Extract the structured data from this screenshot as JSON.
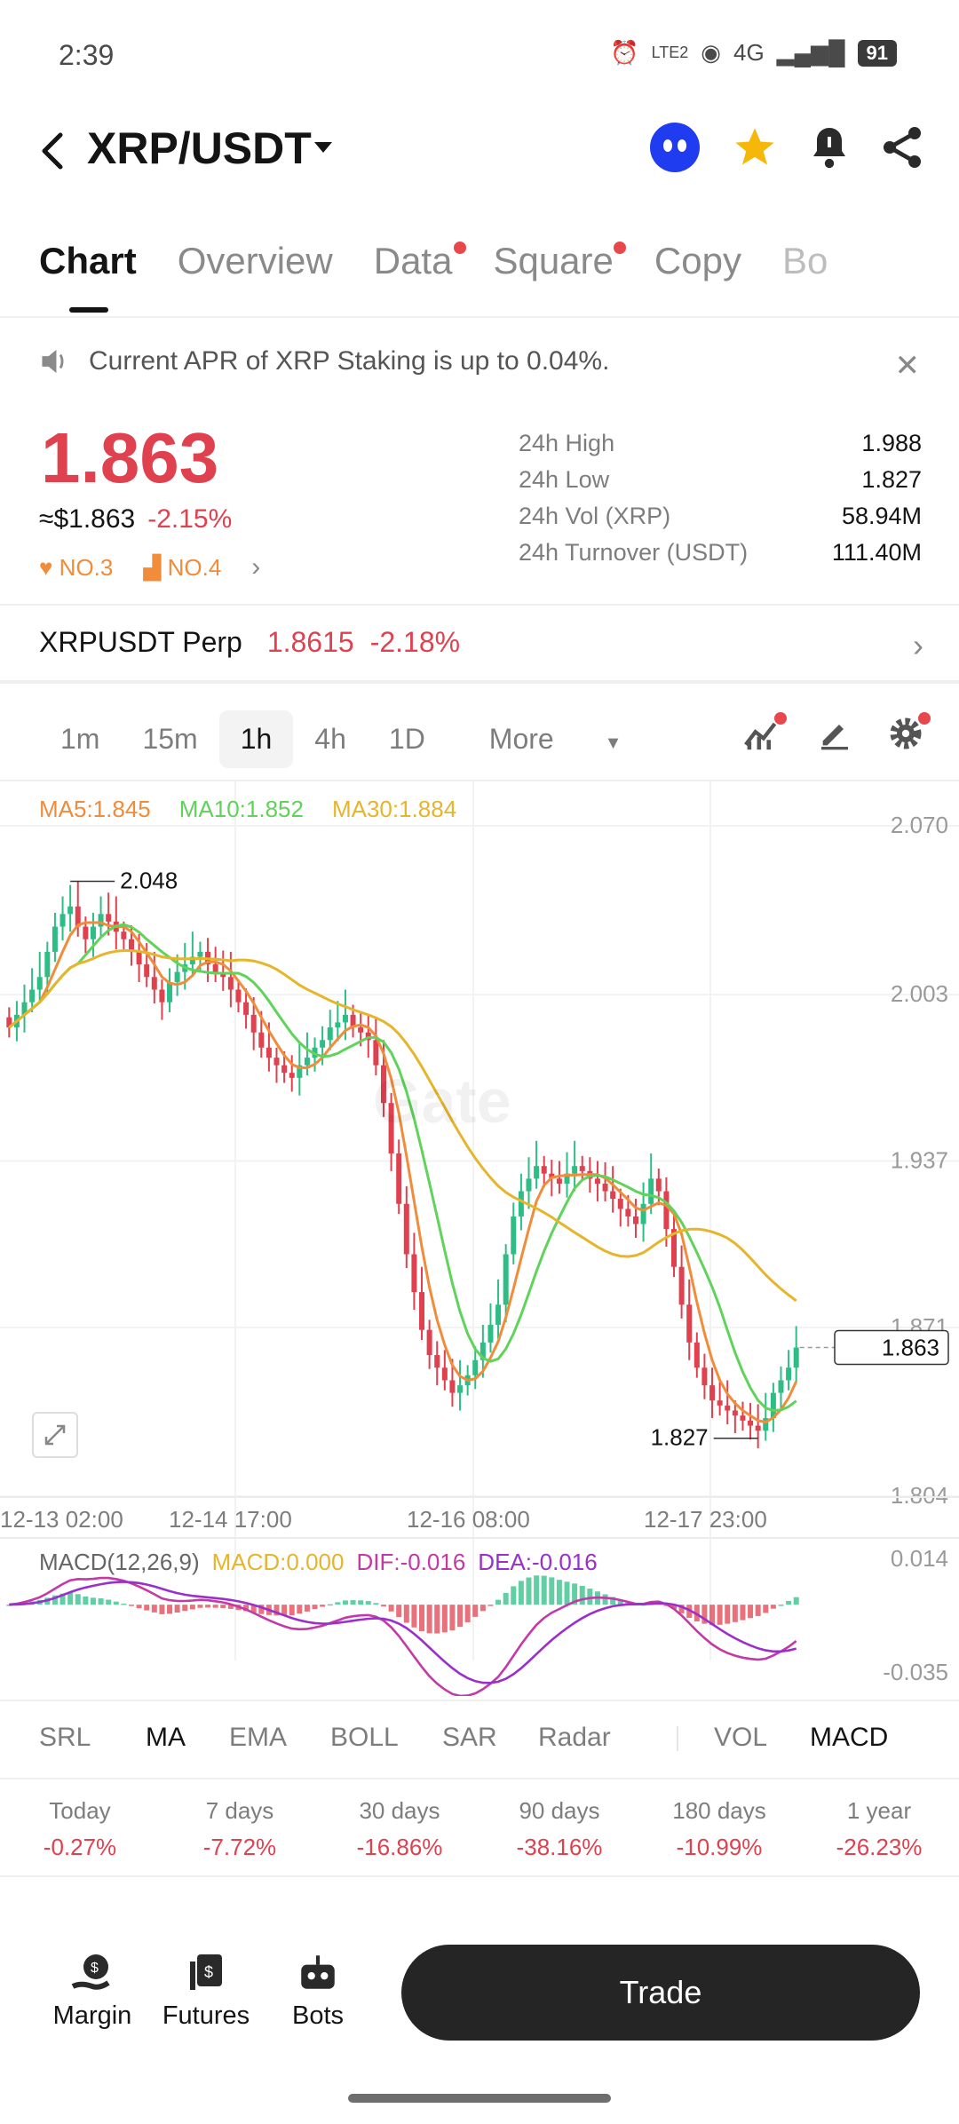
{
  "status": {
    "time": "2:39",
    "battery": "91",
    "network": "4G",
    "lte": "LTE2"
  },
  "header": {
    "pair": "XRP/USDT"
  },
  "tabs": [
    {
      "label": "Chart",
      "active": true,
      "dot": false
    },
    {
      "label": "Overview",
      "active": false,
      "dot": false
    },
    {
      "label": "Data",
      "active": false,
      "dot": true
    },
    {
      "label": "Square",
      "active": false,
      "dot": true
    },
    {
      "label": "Copy",
      "active": false,
      "dot": false
    },
    {
      "label": "Bo",
      "active": false,
      "dot": false
    }
  ],
  "notice": {
    "text": "Current APR of XRP Staking is up to 0.04%."
  },
  "price": {
    "last": "1.863",
    "usd": "≈$1.863",
    "change": "-2.15%",
    "rank1": "NO.3",
    "rank2": "NO.4"
  },
  "stats": [
    {
      "label": "24h High",
      "value": "1.988"
    },
    {
      "label": "24h Low",
      "value": "1.827"
    },
    {
      "label": "24h Vol (XRP)",
      "value": "58.94M"
    },
    {
      "label": "24h Turnover (USDT)",
      "value": "111.40M"
    }
  ],
  "perp": {
    "name": "XRPUSDT Perp",
    "price": "1.8615",
    "change": "-2.18%"
  },
  "intervals": [
    {
      "label": "1m",
      "selected": false
    },
    {
      "label": "15m",
      "selected": false
    },
    {
      "label": "1h",
      "selected": true
    },
    {
      "label": "4h",
      "selected": false
    },
    {
      "label": "1D",
      "selected": false
    }
  ],
  "more_label": "More",
  "ma": {
    "ma5": "MA5:1.845",
    "ma10": "MA10:1.852",
    "ma30": "MA30:1.884"
  },
  "colors": {
    "up": "#2ebd85",
    "down": "#e0414f",
    "ma5": "#f08c3a",
    "ma10": "#5fd35a",
    "ma30": "#e6b52b",
    "dif": "#c339a8",
    "dea": "#9b2fcb"
  },
  "chart_data": {
    "type": "candlestick",
    "y_ticks": [
      "2.070",
      "2.003",
      "1.937",
      "1.871",
      "1.804"
    ],
    "x_ticks": [
      "12-13 02:00",
      "12-14 17:00",
      "12-16 08:00",
      "12-17 23:00"
    ],
    "ylim": [
      1.804,
      2.07
    ],
    "high_label": "2.048",
    "low_label": "1.827",
    "last_price": "1.863",
    "close": [
      1.99,
      1.995,
      2.0,
      2.005,
      2.01,
      2.02,
      2.03,
      2.035,
      2.038,
      2.03,
      2.025,
      2.03,
      2.035,
      2.032,
      2.028,
      2.025,
      2.02,
      2.015,
      2.01,
      2.005,
      2.0,
      2.008,
      2.012,
      2.015,
      2.018,
      2.02,
      2.015,
      2.012,
      2.01,
      2.005,
      2.0,
      1.995,
      1.988,
      1.982,
      1.978,
      1.975,
      1.972,
      1.97,
      1.975,
      1.978,
      1.982,
      1.985,
      1.99,
      1.992,
      1.995,
      1.99,
      1.988,
      1.985,
      1.975,
      1.96,
      1.94,
      1.92,
      1.9,
      1.885,
      1.87,
      1.86,
      1.855,
      1.85,
      1.845,
      1.848,
      1.852,
      1.858,
      1.865,
      1.872,
      1.88,
      1.9,
      1.915,
      1.925,
      1.93,
      1.935,
      1.932,
      1.93,
      1.928,
      1.932,
      1.935,
      1.933,
      1.93,
      1.928,
      1.925,
      1.922,
      1.918,
      1.915,
      1.912,
      1.92,
      1.93,
      1.925,
      1.91,
      1.895,
      1.88,
      1.865,
      1.855,
      1.848,
      1.842,
      1.84,
      1.838,
      1.836,
      1.834,
      1.832,
      1.83,
      1.835,
      1.845,
      1.85,
      1.855,
      1.863
    ],
    "macd_ticks": [
      "0.014",
      "-0.035"
    ],
    "macd": {
      "label": "MACD(12,26,9)",
      "macd": "MACD:0.000",
      "dif": "DIF:-0.016",
      "dea": "DEA:-0.016"
    }
  },
  "indicators": [
    {
      "label": "SRL",
      "dot": true,
      "active": false
    },
    {
      "label": "MA",
      "dot": false,
      "active": true
    },
    {
      "label": "EMA",
      "dot": false,
      "active": false
    },
    {
      "label": "BOLL",
      "dot": false,
      "active": false
    },
    {
      "label": "SAR",
      "dot": false,
      "active": false
    },
    {
      "label": "Radar",
      "dot": true,
      "active": false
    },
    {
      "label": "VOL",
      "dot": false,
      "active": false
    },
    {
      "label": "MACD",
      "dot": false,
      "active": true
    }
  ],
  "performance": [
    {
      "label": "Today",
      "value": "-0.27%"
    },
    {
      "label": "7 days",
      "value": "-7.72%"
    },
    {
      "label": "30 days",
      "value": "-16.86%"
    },
    {
      "label": "90 days",
      "value": "-38.16%"
    },
    {
      "label": "180 days",
      "value": "-10.99%"
    },
    {
      "label": "1 year",
      "value": "-26.23%"
    }
  ],
  "bottom_nav": {
    "margin": "Margin",
    "futures": "Futures",
    "bots": "Bots",
    "trade": "Trade"
  },
  "watermark": "Gate"
}
